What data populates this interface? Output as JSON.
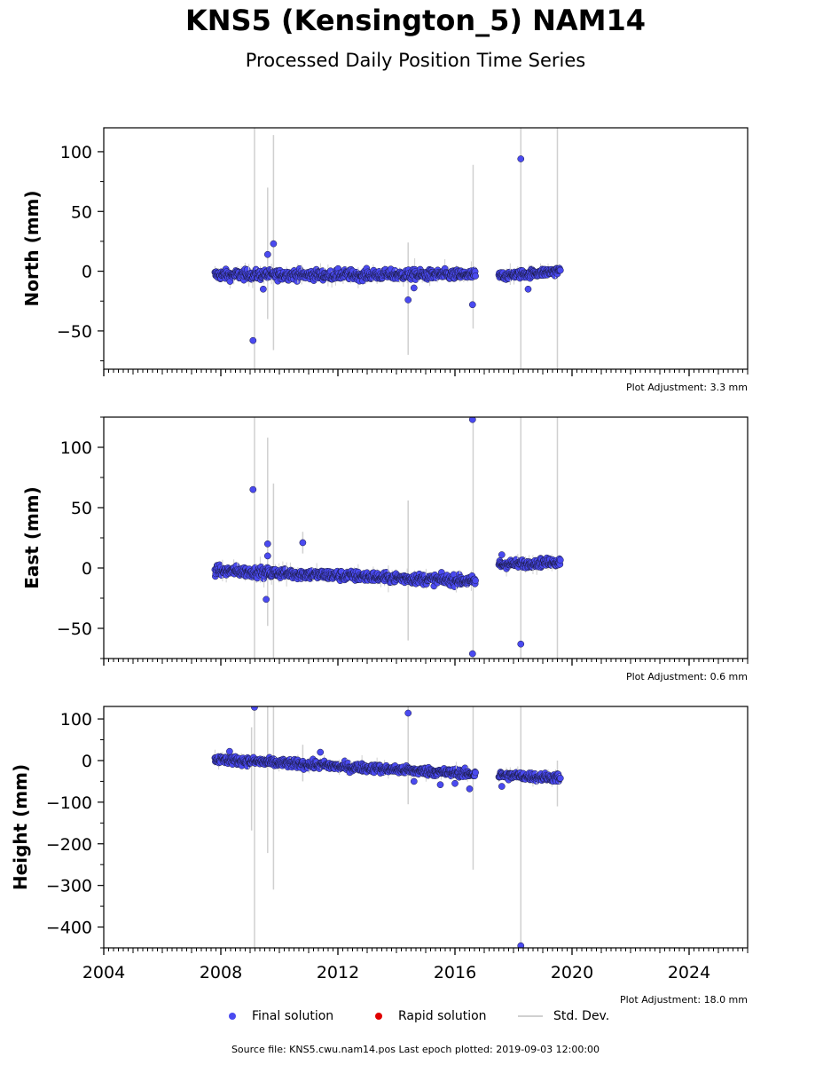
{
  "title": "KNS5 (Kensington_5) NAM14",
  "subtitle": "Processed Daily Position Time Series",
  "source": "Source file: KNS5.cwu.nam14.pos  Last epoch plotted: 2019-09-03 12:00:00",
  "legend": {
    "final": "Final solution",
    "rapid": "Rapid solution",
    "std": "Std. Dev."
  },
  "colors": {
    "final": "#4a4af0",
    "rapid": "#e00000",
    "std": "#d0d0d0",
    "edge": "#1a1a40"
  },
  "chart_data": [
    {
      "type": "scatter",
      "panel": "north",
      "ylabel": "North (mm)",
      "adjustment": "Plot Adjustment: 3.3 mm",
      "xlim": [
        2004,
        2026
      ],
      "ylim": [
        -82,
        120
      ],
      "yticks": [
        -50,
        0,
        50,
        100
      ],
      "ytick_labels": [
        "−50",
        "0",
        "50",
        "100"
      ],
      "segments": [
        {
          "start": 2007.8,
          "end": 2016.7,
          "base": -3,
          "trend": 0,
          "noise": 3
        },
        {
          "start": 2017.5,
          "end": 2019.6,
          "base": -4,
          "trend": 2,
          "noise": 2.5
        }
      ],
      "outliers": [
        {
          "x": 2009.1,
          "y": -58
        },
        {
          "x": 2009.45,
          "y": -15
        },
        {
          "x": 2009.6,
          "y": 14
        },
        {
          "x": 2009.8,
          "y": 23
        },
        {
          "x": 2014.4,
          "y": -24
        },
        {
          "x": 2014.6,
          "y": -14
        },
        {
          "x": 2016.6,
          "y": -28
        },
        {
          "x": 2018.25,
          "y": 94
        },
        {
          "x": 2018.5,
          "y": -15
        }
      ],
      "errorbars": [
        {
          "x": 2009.15,
          "y0": -82,
          "y1": 120
        },
        {
          "x": 2009.6,
          "y0": -40,
          "y1": 70
        },
        {
          "x": 2009.8,
          "y0": -66,
          "y1": 114
        },
        {
          "x": 2014.4,
          "y0": -70,
          "y1": 24
        },
        {
          "x": 2016.62,
          "y0": -48,
          "y1": 89
        },
        {
          "x": 2018.25,
          "y0": -82,
          "y1": 120
        },
        {
          "x": 2019.5,
          "y0": -82,
          "y1": 120
        }
      ]
    },
    {
      "type": "scatter",
      "panel": "east",
      "ylabel": "East (mm)",
      "adjustment": "Plot Adjustment: 0.6 mm",
      "xlim": [
        2004,
        2026
      ],
      "ylim": [
        -75,
        125
      ],
      "yticks": [
        -50,
        0,
        50,
        100
      ],
      "ytick_labels": [
        "−50",
        "0",
        "50",
        "100"
      ],
      "segments": [
        {
          "start": 2007.8,
          "end": 2016.7,
          "base": -2,
          "trend": -1,
          "noise": 3
        },
        {
          "start": 2017.5,
          "end": 2019.6,
          "base": 3,
          "trend": 1,
          "noise": 2.5
        }
      ],
      "outliers": [
        {
          "x": 2009.1,
          "y": 65
        },
        {
          "x": 2009.6,
          "y": 20
        },
        {
          "x": 2009.6,
          "y": 10
        },
        {
          "x": 2009.55,
          "y": -26
        },
        {
          "x": 2010.8,
          "y": 21
        },
        {
          "x": 2016.6,
          "y": 123
        },
        {
          "x": 2016.6,
          "y": -71
        },
        {
          "x": 2018.25,
          "y": -63
        },
        {
          "x": 2017.6,
          "y": 11
        }
      ],
      "errorbars": [
        {
          "x": 2009.15,
          "y0": -75,
          "y1": 125
        },
        {
          "x": 2009.6,
          "y0": -48,
          "y1": 108
        },
        {
          "x": 2009.8,
          "y0": -75,
          "y1": 70
        },
        {
          "x": 2010.8,
          "y0": 12,
          "y1": 30
        },
        {
          "x": 2014.4,
          "y0": -60,
          "y1": 56
        },
        {
          "x": 2016.62,
          "y0": -75,
          "y1": 125
        },
        {
          "x": 2018.25,
          "y0": -75,
          "y1": 125
        },
        {
          "x": 2019.5,
          "y0": -75,
          "y1": 125
        }
      ]
    },
    {
      "type": "scatter",
      "panel": "height",
      "ylabel": "Height (mm)",
      "adjustment": "Plot Adjustment: 18.0 mm",
      "xlim": [
        2004,
        2026
      ],
      "ylim": [
        -450,
        130
      ],
      "yticks": [
        -400,
        -300,
        -200,
        -100,
        0,
        100
      ],
      "ytick_labels": [
        "−400",
        "−300",
        "−200",
        "−100",
        "0",
        "100"
      ],
      "xticks": [
        2004,
        2008,
        2012,
        2016,
        2020,
        2024
      ],
      "xtick_labels": [
        "2004",
        "2008",
        "2012",
        "2016",
        "2020",
        "2024"
      ],
      "segments": [
        {
          "start": 2007.8,
          "end": 2016.7,
          "base": 3,
          "trend": -4,
          "noise": 7
        },
        {
          "start": 2017.5,
          "end": 2019.6,
          "base": -35,
          "trend": -3,
          "noise": 7
        }
      ],
      "outliers": [
        {
          "x": 2009.15,
          "y": 128
        },
        {
          "x": 2014.4,
          "y": 114
        },
        {
          "x": 2014.6,
          "y": -50
        },
        {
          "x": 2015.5,
          "y": -58
        },
        {
          "x": 2016.0,
          "y": -55
        },
        {
          "x": 2016.5,
          "y": -68
        },
        {
          "x": 2011.4,
          "y": 20
        },
        {
          "x": 2008.3,
          "y": 22
        },
        {
          "x": 2018.25,
          "y": -445
        },
        {
          "x": 2017.6,
          "y": -62
        }
      ],
      "errorbars": [
        {
          "x": 2009.05,
          "y0": -168,
          "y1": 80
        },
        {
          "x": 2009.15,
          "y0": -450,
          "y1": 130
        },
        {
          "x": 2009.6,
          "y0": -222,
          "y1": 130
        },
        {
          "x": 2009.8,
          "y0": -310,
          "y1": 130
        },
        {
          "x": 2010.8,
          "y0": -50,
          "y1": 38
        },
        {
          "x": 2014.4,
          "y0": -105,
          "y1": 130
        },
        {
          "x": 2016.62,
          "y0": -262,
          "y1": 130
        },
        {
          "x": 2018.25,
          "y0": -450,
          "y1": 130
        },
        {
          "x": 2019.5,
          "y0": -110,
          "y1": 0
        }
      ]
    }
  ]
}
